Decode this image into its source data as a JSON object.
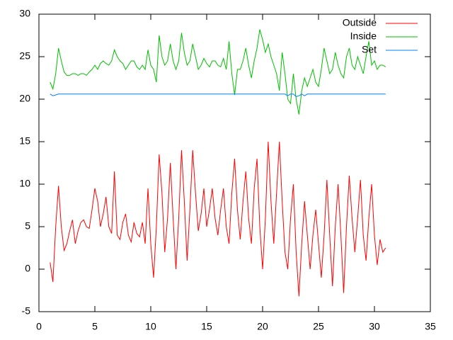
{
  "chart_data": {
    "type": "line",
    "x": [
      1,
      1.25,
      1.5,
      1.75,
      2,
      2.25,
      2.5,
      2.75,
      3,
      3.25,
      3.5,
      3.75,
      4,
      4.25,
      4.5,
      4.75,
      5,
      5.25,
      5.5,
      5.75,
      6,
      6.25,
      6.5,
      6.75,
      7,
      7.25,
      7.5,
      7.75,
      8,
      8.25,
      8.5,
      8.75,
      9,
      9.25,
      9.5,
      9.75,
      10,
      10.25,
      10.5,
      10.75,
      11,
      11.25,
      11.5,
      11.75,
      12,
      12.25,
      12.5,
      12.75,
      13,
      13.25,
      13.5,
      13.75,
      14,
      14.25,
      14.5,
      14.75,
      15,
      15.25,
      15.5,
      15.75,
      16,
      16.25,
      16.5,
      16.75,
      17,
      17.25,
      17.5,
      17.75,
      18,
      18.25,
      18.5,
      18.75,
      19,
      19.25,
      19.5,
      19.75,
      20,
      20.25,
      20.5,
      20.75,
      21,
      21.25,
      21.5,
      21.75,
      22,
      22.25,
      22.5,
      22.75,
      23,
      23.25,
      23.5,
      23.75,
      24,
      24.25,
      24.5,
      24.75,
      25,
      25.25,
      25.5,
      25.75,
      26,
      26.25,
      26.5,
      26.75,
      27,
      27.25,
      27.5,
      27.75,
      28,
      28.25,
      28.5,
      28.75,
      29,
      29.25,
      29.5,
      29.75,
      30,
      30.25,
      30.5,
      30.75,
      31
    ],
    "series": [
      {
        "name": "Outside",
        "color": "#ff0000",
        "values": [
          0.8,
          -1.5,
          5,
          9.8,
          5,
          2.2,
          3,
          4.5,
          5.8,
          3,
          4.5,
          5.5,
          5.8,
          5,
          4.8,
          7,
          9.5,
          8,
          5,
          6.5,
          8.5,
          5,
          4.2,
          11.5,
          4,
          3.5,
          5.5,
          6.5,
          4,
          3.2,
          5.5,
          4.2,
          3.8,
          5.5,
          3,
          9.5,
          3,
          -1,
          5,
          13.5,
          9,
          2,
          6,
          12.5,
          6,
          0,
          6,
          14,
          8,
          1,
          7,
          14,
          9,
          4.5,
          6.5,
          9.5,
          5,
          7,
          9.5,
          6,
          4,
          7,
          9.5,
          5,
          3,
          9,
          13,
          7,
          3.5,
          8,
          11.5,
          6,
          3,
          9.5,
          13,
          5,
          0,
          6,
          15,
          8,
          3,
          9,
          15,
          8,
          2,
          0,
          6,
          10,
          2,
          -3.2,
          3,
          8,
          4,
          0,
          4,
          7,
          3,
          -1,
          4,
          10.5,
          4,
          -2,
          5,
          10,
          4,
          -2.8,
          5,
          11,
          6,
          2,
          6,
          10.5,
          4,
          1,
          6,
          10,
          4,
          0.5,
          3.5,
          2,
          2.5
        ]
      },
      {
        "name": "Inside",
        "color": "#00c000",
        "values": [
          22,
          21.2,
          23,
          26,
          24.5,
          23.2,
          22.8,
          22.8,
          23,
          23,
          22.8,
          23,
          23,
          22.8,
          23.2,
          23.5,
          24,
          23.5,
          24.2,
          24.5,
          24.2,
          24,
          24.5,
          25.8,
          25,
          24.5,
          24.2,
          23.5,
          24,
          24.5,
          24.5,
          23.8,
          23.5,
          24,
          23.5,
          25.8,
          24,
          23.5,
          22,
          27.5,
          25,
          24,
          24.5,
          26.5,
          24.5,
          23.5,
          24.5,
          27.8,
          25.5,
          24,
          24.5,
          26.5,
          25,
          23.5,
          24,
          24.8,
          24.2,
          23.8,
          24.5,
          24.5,
          24,
          23.8,
          24.8,
          23.5,
          26.8,
          23,
          20.5,
          23.5,
          23.5,
          24.5,
          26,
          24,
          22.5,
          24.5,
          26,
          28.2,
          27,
          25.5,
          26.5,
          25,
          24,
          23,
          21,
          25.5,
          23,
          20,
          19.5,
          23,
          20,
          18.2,
          21,
          22.5,
          21.5,
          22.5,
          23.5,
          22,
          21.5,
          23.5,
          26,
          24.5,
          23,
          23.5,
          25.5,
          24,
          23,
          22.5,
          25,
          26,
          24,
          23.5,
          25,
          24,
          23,
          25,
          26.8,
          24,
          24.5,
          23.5,
          24,
          24,
          23.8
        ]
      },
      {
        "name": "Set",
        "color": "#0080ff",
        "values": [
          20.6,
          20.4,
          20.5,
          20.6,
          20.6,
          20.6,
          20.6,
          20.6,
          20.6,
          20.6,
          20.6,
          20.6,
          20.6,
          20.6,
          20.6,
          20.6,
          20.6,
          20.6,
          20.6,
          20.6,
          20.6,
          20.6,
          20.6,
          20.6,
          20.6,
          20.6,
          20.6,
          20.6,
          20.6,
          20.6,
          20.6,
          20.6,
          20.6,
          20.6,
          20.6,
          20.6,
          20.6,
          20.6,
          20.6,
          20.6,
          20.6,
          20.6,
          20.6,
          20.6,
          20.6,
          20.6,
          20.6,
          20.6,
          20.6,
          20.6,
          20.6,
          20.6,
          20.6,
          20.6,
          20.6,
          20.6,
          20.6,
          20.6,
          20.6,
          20.6,
          20.6,
          20.6,
          20.6,
          20.6,
          20.6,
          20.6,
          20.6,
          20.6,
          20.6,
          20.6,
          20.6,
          20.6,
          20.6,
          20.6,
          20.6,
          20.6,
          20.6,
          20.6,
          20.6,
          20.6,
          20.6,
          20.6,
          20.6,
          20.6,
          20.6,
          20.4,
          20.6,
          20.6,
          20.3,
          20.4,
          20.6,
          20.4,
          20.6,
          20.6,
          20.6,
          20.6,
          20.6,
          20.6,
          20.6,
          20.6,
          20.6,
          20.6,
          20.6,
          20.6,
          20.6,
          20.6,
          20.6,
          20.6,
          20.6,
          20.6,
          20.6,
          20.6,
          20.6,
          20.6,
          20.6,
          20.6,
          20.6,
          20.6,
          20.6,
          20.6,
          20.6
        ]
      }
    ],
    "xlim": [
      0,
      35
    ],
    "xticks": [
      0,
      5,
      10,
      15,
      20,
      25,
      30,
      35
    ],
    "ylim": [
      -5,
      30
    ],
    "yticks": [
      -5,
      0,
      5,
      10,
      15,
      20,
      25,
      30
    ],
    "legend": "top-right"
  }
}
